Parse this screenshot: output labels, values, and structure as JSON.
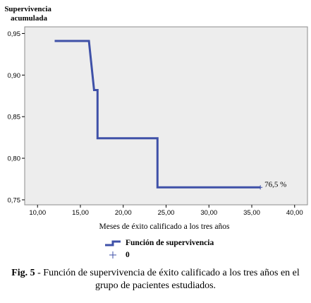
{
  "chart_data": {
    "type": "line",
    "ylabel": [
      "Supervivencia",
      "acumulada"
    ],
    "xlabel": "Meses de éxito calificado a los tres años",
    "xlim": [
      8.5,
      41.5
    ],
    "ylim": [
      0.744,
      0.958
    ],
    "xticks": [
      "10,00",
      "15,00",
      "20,00",
      "25,00",
      "30,00",
      "35,00",
      "40,00"
    ],
    "xtick_values": [
      10,
      15,
      20,
      25,
      30,
      35,
      40
    ],
    "yticks": [
      "0,75",
      "0,80",
      "0,85",
      "0,90",
      "0,95"
    ],
    "ytick_values": [
      0.75,
      0.8,
      0.85,
      0.9,
      0.95
    ],
    "grid": false,
    "series": [
      {
        "name": "Función de supervivencia",
        "color": "#3f51a8",
        "step": true,
        "x": [
          12,
          16,
          16.6,
          17,
          17,
          24,
          24,
          36
        ],
        "y": [
          0.941,
          0.941,
          0.882,
          0.882,
          0.824,
          0.824,
          0.765,
          0.765
        ]
      }
    ],
    "censored": {
      "name": "0",
      "marker": "plus",
      "x": [
        36
      ],
      "y": [
        0.765
      ]
    },
    "annotations": [
      {
        "text": "76,5 %",
        "x": 36,
        "y": 0.765
      }
    ]
  },
  "caption": {
    "label": "Fig. 5",
    "text": " - Función de supervivencia de éxito calificado a los tres años en el grupo de pacientes estudiados."
  }
}
